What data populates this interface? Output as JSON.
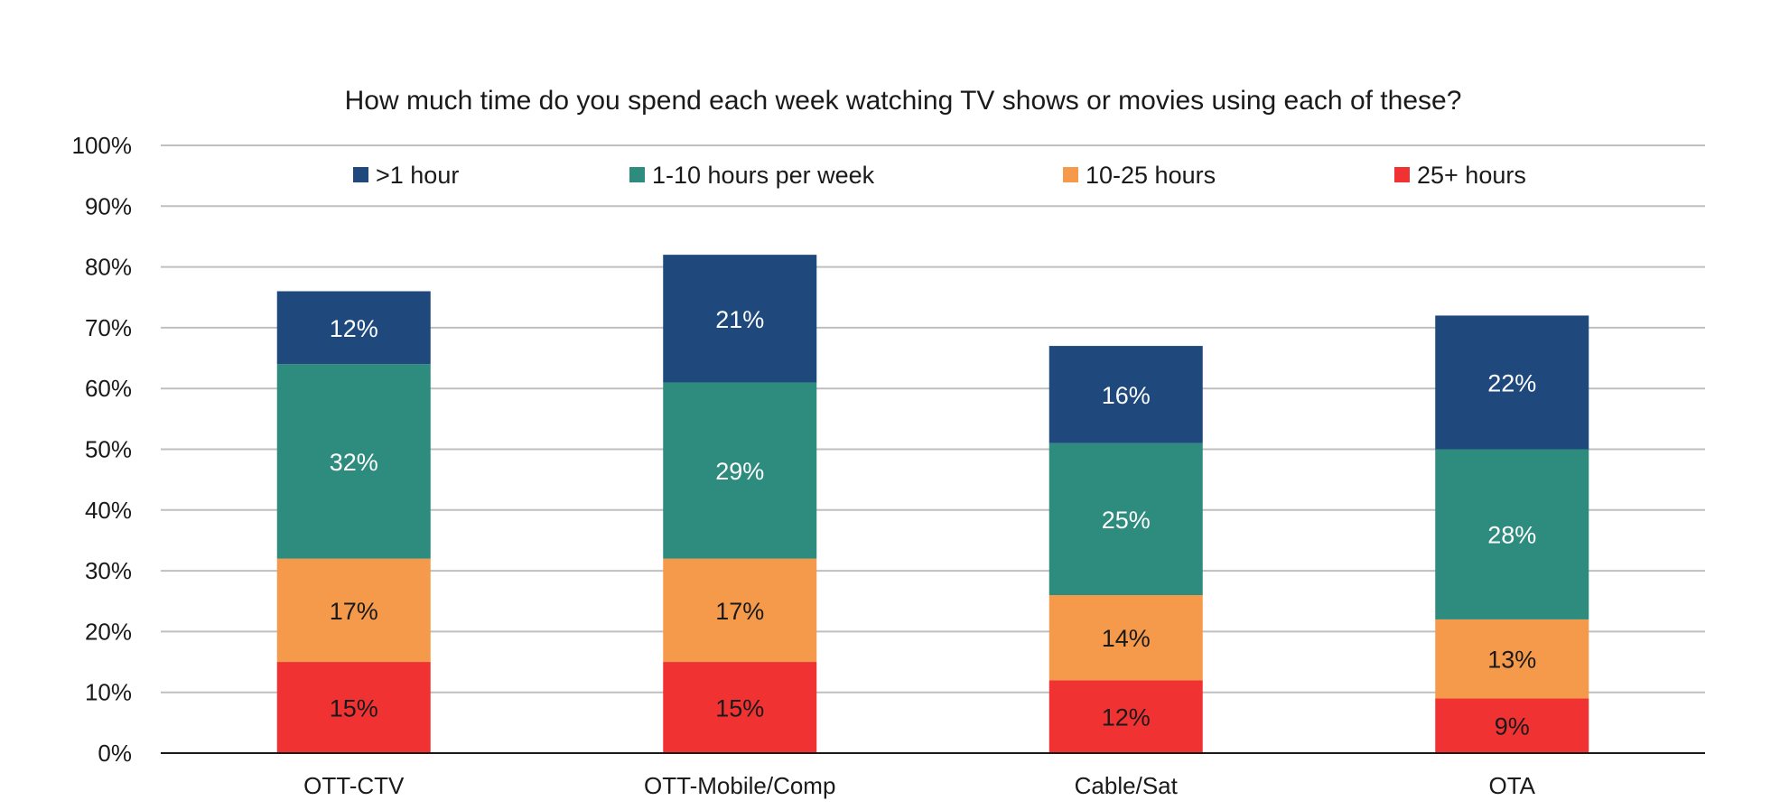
{
  "chart_data": {
    "type": "bar",
    "stacked": true,
    "title": "How much time do you spend each week watching TV shows or movies using each of these?",
    "xlabel": "",
    "ylabel": "",
    "ylim": [
      0,
      100
    ],
    "ytick_step": 10,
    "ytick_suffix": "%",
    "grid": true,
    "legend_position": "top",
    "categories": [
      "OTT-CTV",
      "OTT-Mobile/Comp",
      "Cable/Sat",
      "OTA"
    ],
    "series": [
      {
        "name": "25+ hours",
        "color": "#f03232",
        "label_color": "#1a1a1a",
        "values": [
          15,
          15,
          12,
          9
        ],
        "labels": [
          "15%",
          "15%",
          "12%",
          "9%"
        ]
      },
      {
        "name": "10-25 hours",
        "color": "#f59a4b",
        "label_color": "#1a1a1a",
        "values": [
          17,
          17,
          14,
          13
        ],
        "labels": [
          "17%",
          "17%",
          "14%",
          "13%"
        ]
      },
      {
        "name": "1-10 hours per week",
        "color": "#2e8c7e",
        "label_color": "#ffffff",
        "values": [
          32,
          29,
          25,
          28
        ],
        "labels": [
          "32%",
          "29%",
          "25%",
          "28%"
        ]
      },
      {
        "name": ">1 hour",
        "color": "#1f497d",
        "label_color": "#ffffff",
        "values": [
          12,
          21,
          16,
          22
        ],
        "labels": [
          "12%",
          "21%",
          "16%",
          "22%"
        ]
      }
    ],
    "legend_order": [
      ">1 hour",
      "1-10 hours per week",
      "10-25 hours",
      "25+ hours"
    ],
    "gridline_color": "#bfbfbf",
    "axis_color": "#1a1a1a"
  }
}
